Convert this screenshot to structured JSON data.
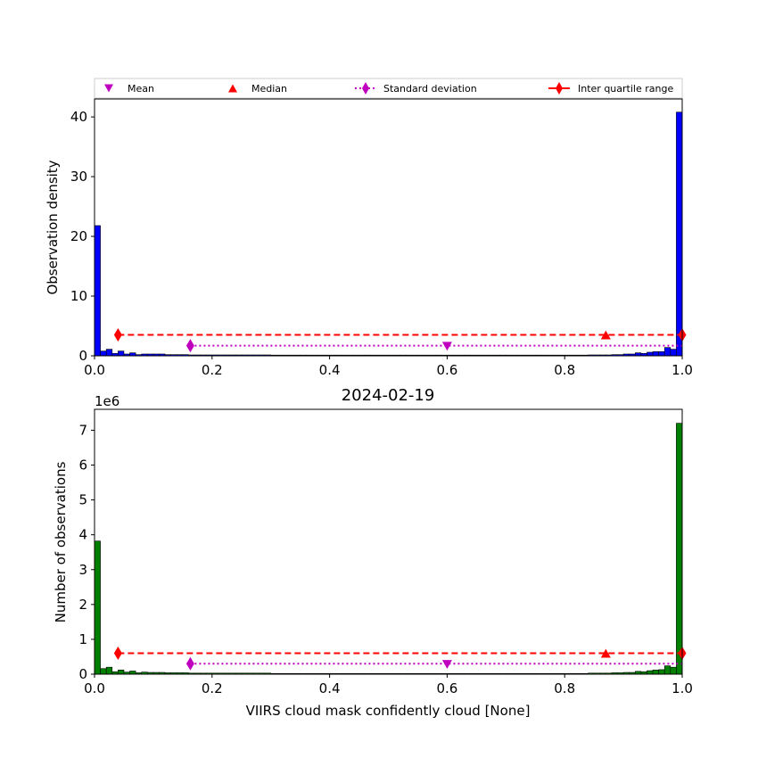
{
  "legend": {
    "mean": "Mean",
    "median": "Median",
    "std": "Standard deviation",
    "iqr": "Inter quartile range"
  },
  "colors": {
    "mean": "#bf00bf",
    "median": "#ff0000",
    "std": "#bf00bf",
    "iqr": "#ff0000",
    "top_bars": "#0000ff",
    "bottom_bars": "#008000"
  },
  "chart_data": [
    {
      "type": "bar",
      "ylabel": "Observation density",
      "xlim": [
        0,
        1
      ],
      "ylim": [
        0,
        43
      ],
      "xticks": [
        "0.0",
        "0.2",
        "0.4",
        "0.6",
        "0.8",
        "1.0"
      ],
      "yticks": [
        "0",
        "10",
        "20",
        "30",
        "40"
      ],
      "bin_values": [
        21.8,
        0.8,
        1.1,
        0.4,
        0.8,
        0.3,
        0.5,
        0.2,
        0.3,
        0.3,
        0.3,
        0.3,
        0.2,
        0.2,
        0.2,
        0.2,
        0.15,
        0.15,
        0.15,
        0.15,
        0.15,
        0.15,
        0.15,
        0.15,
        0.15,
        0.15,
        0.15,
        0.15,
        0.15,
        0.15,
        0.12,
        0.12,
        0.12,
        0.12,
        0.12,
        0.12,
        0.12,
        0.12,
        0.12,
        0.12,
        0.12,
        0.12,
        0.12,
        0.12,
        0.12,
        0.12,
        0.12,
        0.12,
        0.12,
        0.12,
        0.12,
        0.12,
        0.12,
        0.12,
        0.12,
        0.12,
        0.12,
        0.12,
        0.12,
        0.12,
        0.12,
        0.12,
        0.12,
        0.12,
        0.12,
        0.12,
        0.12,
        0.12,
        0.12,
        0.12,
        0.12,
        0.12,
        0.12,
        0.12,
        0.12,
        0.12,
        0.12,
        0.12,
        0.12,
        0.12,
        0.12,
        0.12,
        0.12,
        0.12,
        0.15,
        0.15,
        0.15,
        0.15,
        0.2,
        0.2,
        0.3,
        0.3,
        0.5,
        0.4,
        0.6,
        0.7,
        0.7,
        1.4,
        1.1,
        40.8
      ],
      "stats": {
        "mean": {
          "x": 0.6,
          "y": 1.6
        },
        "median": {
          "x": 0.87,
          "y": 3.5
        },
        "std_line": {
          "x1": 0.163,
          "x2": 1.0,
          "y": 1.7
        },
        "iqr_line": {
          "x1": 0.04,
          "x2": 1.0,
          "y": 3.5
        }
      }
    },
    {
      "type": "bar",
      "title": "2024-02-19",
      "xlabel": "VIIRS cloud mask confidently cloud [None]",
      "ylabel": "Number of observations",
      "scale_label": "1e6",
      "xlim": [
        0,
        1
      ],
      "ylim": [
        0,
        7.6
      ],
      "xticks": [
        "0.0",
        "0.2",
        "0.4",
        "0.6",
        "0.8",
        "1.0"
      ],
      "yticks": [
        "0",
        "1",
        "2",
        "3",
        "4",
        "5",
        "6",
        "7"
      ],
      "bin_values": [
        3.82,
        0.16,
        0.2,
        0.07,
        0.12,
        0.06,
        0.09,
        0.04,
        0.06,
        0.05,
        0.05,
        0.05,
        0.04,
        0.04,
        0.04,
        0.04,
        0.03,
        0.03,
        0.03,
        0.03,
        0.03,
        0.03,
        0.03,
        0.03,
        0.03,
        0.03,
        0.03,
        0.03,
        0.03,
        0.03,
        0.02,
        0.02,
        0.02,
        0.02,
        0.02,
        0.02,
        0.02,
        0.02,
        0.02,
        0.02,
        0.02,
        0.02,
        0.02,
        0.02,
        0.02,
        0.02,
        0.02,
        0.02,
        0.02,
        0.02,
        0.02,
        0.02,
        0.02,
        0.02,
        0.02,
        0.02,
        0.02,
        0.02,
        0.02,
        0.02,
        0.02,
        0.02,
        0.02,
        0.02,
        0.02,
        0.02,
        0.02,
        0.02,
        0.02,
        0.02,
        0.02,
        0.02,
        0.02,
        0.02,
        0.02,
        0.02,
        0.02,
        0.02,
        0.02,
        0.02,
        0.02,
        0.02,
        0.02,
        0.02,
        0.03,
        0.03,
        0.03,
        0.03,
        0.04,
        0.04,
        0.05,
        0.05,
        0.08,
        0.07,
        0.1,
        0.12,
        0.13,
        0.24,
        0.2,
        7.2
      ],
      "stats": {
        "mean": {
          "x": 0.6,
          "y": 0.28
        },
        "median": {
          "x": 0.87,
          "y": 0.6
        },
        "std_line": {
          "x1": 0.163,
          "x2": 1.0,
          "y": 0.3
        },
        "iqr_line": {
          "x1": 0.04,
          "x2": 1.0,
          "y": 0.6
        }
      }
    }
  ]
}
